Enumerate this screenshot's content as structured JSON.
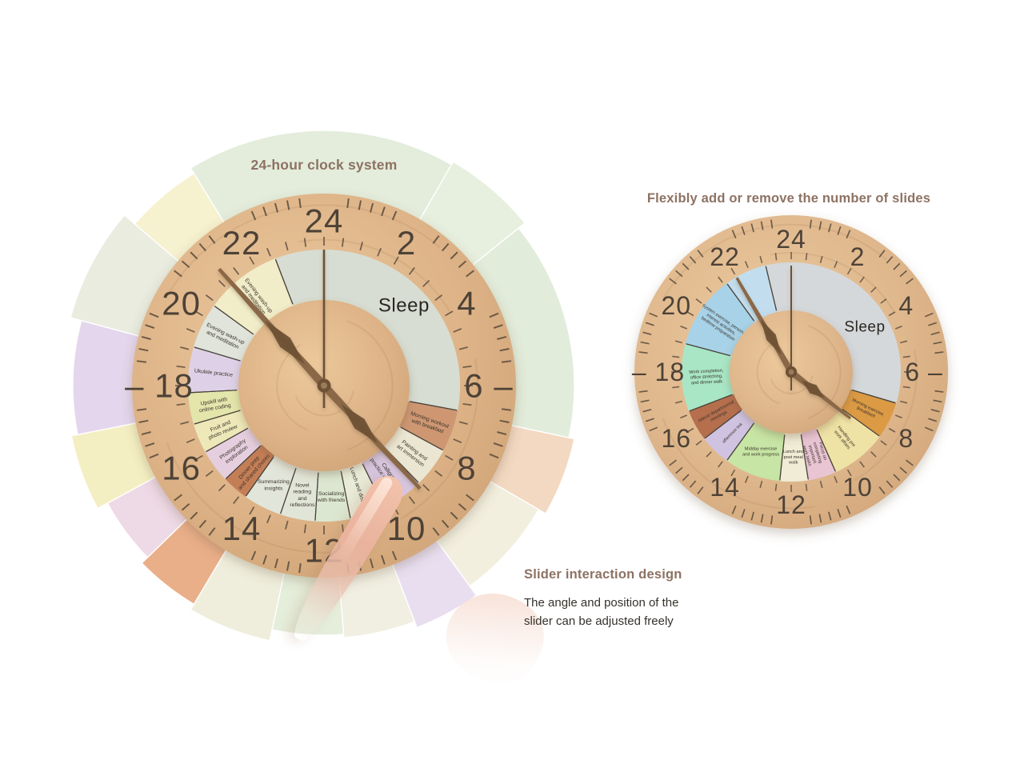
{
  "page": {
    "background": "#ffffff",
    "accent_brown": "#8d7263",
    "text_dark": "#36312c"
  },
  "titles": {
    "left": "24-hour clock system",
    "right": "Flexibly add or remove the number of slides",
    "slider": "Slider interaction design",
    "slider_body": "The angle and position of the\nslider can be adjusted freely"
  },
  "left_clock": {
    "numbers": [
      "24",
      "2",
      "4",
      "6 –",
      "8",
      "10",
      "12",
      "14",
      "16",
      "– 18",
      "20",
      "22"
    ],
    "colors": {
      "wood": "#ddb387",
      "wood_dark": "#cda174",
      "face": "#d7ddd2",
      "tick": "#5a4b3b",
      "number": "#4d4237",
      "hand": "#8a6747",
      "hand_dark": "#6e5136",
      "second_hand": "#6d5134",
      "label_text": "#3b342c",
      "sleep_text": "#2a2521"
    },
    "segments": [
      {
        "start": 22.6,
        "end": 30.7,
        "color": "#d7ddd2",
        "label": [
          "Sleep"
        ],
        "primary": true
      },
      {
        "start": 6.7,
        "end": 7.9,
        "color": "#ce9772",
        "label": [
          "Morning workout",
          "with breakfast"
        ]
      },
      {
        "start": 7.9,
        "end": 9.05,
        "color": "#ebe6d2",
        "label": [
          "Painting and",
          "art immersion"
        ]
      },
      {
        "start": 9.05,
        "end": 10.25,
        "color": "#d7c5df",
        "label": [
          "Calligraphy",
          "practice with friends"
        ]
      },
      {
        "start": 10.25,
        "end": 11.25,
        "color": "#e8ebd8",
        "label": [
          "Lunch and discovery"
        ]
      },
      {
        "start": 11.25,
        "end": 12.25,
        "color": "#dbe7d1",
        "label": [
          "Socializing",
          "with friends"
        ]
      },
      {
        "start": 12.25,
        "end": 13.25,
        "color": "#e1e5d7",
        "label": [
          "Novel",
          "reading",
          "and",
          "reflections"
        ]
      },
      {
        "start": 13.25,
        "end": 14.35,
        "color": "#e2e5d9",
        "label": [
          "Summarizing",
          "insights"
        ]
      },
      {
        "start": 14.35,
        "end": 15.1,
        "color": "#c47e56",
        "label": [
          "Dinner prep",
          "and shared chores"
        ]
      },
      {
        "start": 15.1,
        "end": 16.05,
        "color": "#e5cfdf",
        "label": [
          "Photography",
          "exploration"
        ]
      },
      {
        "start": 16.05,
        "end": 16.9,
        "color": "#eee8b9",
        "label": [
          "Fruit and",
          "photo review"
        ]
      },
      {
        "start": 16.9,
        "end": 17.8,
        "color": "#e3e6ab",
        "label": [
          "Upskill with",
          "online coding"
        ]
      },
      {
        "start": 17.8,
        "end": 19.1,
        "color": "#ded1e7",
        "label": [
          "Ukulele practice"
        ]
      },
      {
        "start": 19.1,
        "end": 20.4,
        "color": "#e0e4db",
        "label": [
          "Evening wash-up",
          "and meditation"
        ]
      },
      {
        "start": 20.4,
        "end": 22.6,
        "color": "#f1edc9",
        "label": [
          "Evening wash-up",
          "and meditation"
        ]
      }
    ],
    "outer_ring": [
      {
        "start": 6.8,
        "end": 8.0,
        "color": "#f3d9c2"
      },
      {
        "start": 8.0,
        "end": 9.6,
        "color": "#f2efdf"
      },
      {
        "start": 9.6,
        "end": 10.6,
        "color": "#e8def0"
      },
      {
        "start": 10.6,
        "end": 11.7,
        "color": "#f1efe2"
      },
      {
        "start": 11.7,
        "end": 12.8,
        "color": "#e5eedb"
      },
      {
        "start": 12.8,
        "end": 14.05,
        "color": "#efeedd"
      },
      {
        "start": 14.05,
        "end": 15.05,
        "color": "#e9af89"
      },
      {
        "start": 15.05,
        "end": 16.1,
        "color": "#eed9e6"
      },
      {
        "start": 16.1,
        "end": 17.25,
        "color": "#f4efc3"
      },
      {
        "start": 17.25,
        "end": 19.0,
        "color": "#e4d6ec"
      },
      {
        "start": 19.0,
        "end": 20.7,
        "color": "#e9ecdf"
      },
      {
        "start": 20.7,
        "end": 21.9,
        "color": "#f6f1cf"
      },
      {
        "start": 21.9,
        "end": 26.0,
        "color": "#e4eddc"
      },
      {
        "start": 26.0,
        "end": 27.4,
        "color": "#e7efde"
      },
      {
        "start": 27.4,
        "end": 30.8,
        "color": "#e2ecda"
      }
    ]
  },
  "right_clock": {
    "numbers": [
      "24",
      "2",
      "4",
      "6 –",
      "8",
      "10",
      "12",
      "14",
      "16",
      "– 18",
      "20",
      "22"
    ],
    "colors": {
      "wood": "#dfb78c",
      "wood_dark": "#cfa377",
      "face": "#d4d8da",
      "tick": "#5a4b3b",
      "number": "#4d4237",
      "hand": "#8a6747",
      "hand_dark": "#6e5136",
      "second_hand": "#6d5134",
      "label_text": "#3b342c",
      "sleep_text": "#2a2521"
    },
    "segments": [
      {
        "start": 23.1,
        "end": 31.1,
        "color": "#d4d8da",
        "label": [
          "Sleep"
        ],
        "primary": true
      },
      {
        "start": 7.1,
        "end": 8.4,
        "color": "#dc9a45",
        "label": [
          "Morning exercise,",
          "Breakfast!"
        ]
      },
      {
        "start": 8.4,
        "end": 10.4,
        "color": "#efe2a5",
        "label": [
          "Handling pre",
          "work affairs"
        ]
      },
      {
        "start": 10.4,
        "end": 11.4,
        "color": "#e9c4d3",
        "label": [
          "Focus on",
          "completing",
          "important",
          "work tasks"
        ]
      },
      {
        "start": 11.4,
        "end": 12.4,
        "color": "#f0ecd5",
        "label": [
          "Lunch and",
          "post meal",
          "walk"
        ]
      },
      {
        "start": 12.4,
        "end": 14.4,
        "color": "#c7e5a4",
        "label": [
          "Midday exercise",
          "and work progress"
        ]
      },
      {
        "start": 14.4,
        "end": 15.5,
        "color": "#cfc3e1",
        "label": [
          "afternoon tea"
        ]
      },
      {
        "start": 15.5,
        "end": 16.6,
        "color": "#b56f4d",
        "label": [
          "Attend departmental",
          "meetings"
        ]
      },
      {
        "start": 16.6,
        "end": 19.0,
        "color": "#a8e6c5",
        "label": [
          "Work completion,",
          "office stretching,",
          "and dinner walk"
        ]
      },
      {
        "start": 19.0,
        "end": 21.6,
        "color": "#a7d2e7",
        "label": [
          "System exercise, personal",
          "interest activities,",
          "bedtime preparation"
        ]
      },
      {
        "start": 21.6,
        "end": 23.1,
        "color": "#c2deee",
        "label": []
      }
    ],
    "outer_ring": []
  }
}
